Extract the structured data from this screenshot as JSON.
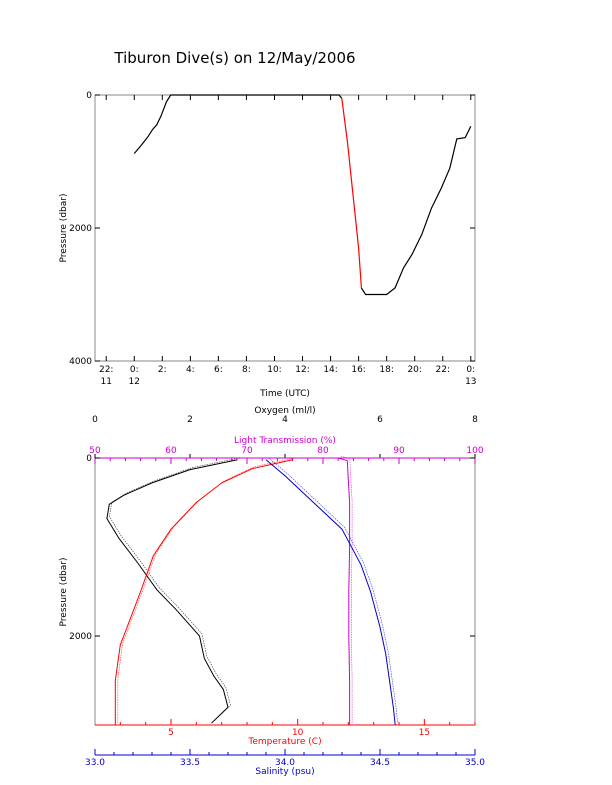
{
  "title": "Tiburon Dive(s) on 12/May/2006",
  "chart_data": [
    {
      "type": "line",
      "xlabel": "Time (UTC)",
      "ylabel": "Pressure (dbar)",
      "y_inverted": true,
      "ylim": [
        4000,
        0
      ],
      "xlim": [
        -0.8,
        26.3
      ],
      "x_ticks": [
        {
          "x": 0,
          "l1": "22:",
          "l2": "11"
        },
        {
          "x": 2,
          "l1": "0:",
          "l2": "12"
        },
        {
          "x": 4,
          "l1": "2:",
          "l2": ""
        },
        {
          "x": 6,
          "l1": "4:",
          "l2": ""
        },
        {
          "x": 8,
          "l1": "6:",
          "l2": ""
        },
        {
          "x": 10,
          "l1": "8:",
          "l2": ""
        },
        {
          "x": 12,
          "l1": "10:",
          "l2": ""
        },
        {
          "x": 14,
          "l1": "12:",
          "l2": ""
        },
        {
          "x": 16,
          "l1": "14:",
          "l2": ""
        },
        {
          "x": 18,
          "l1": "16:",
          "l2": ""
        },
        {
          "x": 20,
          "l1": "18:",
          "l2": ""
        },
        {
          "x": 22,
          "l1": "20:",
          "l2": ""
        },
        {
          "x": 24,
          "l1": "22:",
          "l2": ""
        },
        {
          "x": 26,
          "l1": "0:",
          "l2": "13"
        }
      ],
      "y_ticks": [
        0,
        2000,
        4000
      ],
      "series": [
        {
          "color": "#000000",
          "points": [
            [
              2.0,
              880
            ],
            [
              2.4,
              780
            ],
            [
              2.7,
              700
            ],
            [
              3.0,
              620
            ],
            [
              3.3,
              520
            ],
            [
              3.6,
              450
            ],
            [
              3.9,
              320
            ],
            [
              4.3,
              100
            ],
            [
              4.6,
              0
            ],
            [
              7,
              0
            ],
            [
              10,
              0
            ],
            [
              13,
              0
            ],
            [
              16,
              0
            ],
            [
              16.6,
              0
            ],
            [
              16.8,
              50
            ]
          ]
        },
        {
          "color": "#ff0000",
          "points": [
            [
              16.8,
              50
            ],
            [
              17.2,
              700
            ],
            [
              17.6,
              1500
            ],
            [
              18.0,
              2300
            ],
            [
              18.2,
              2900
            ]
          ]
        },
        {
          "color": "#000000",
          "points": [
            [
              18.2,
              2900
            ],
            [
              18.5,
              3000
            ],
            [
              19.4,
              3000
            ],
            [
              20.0,
              3000
            ],
            [
              20.6,
              2900
            ],
            [
              21.2,
              2600
            ],
            [
              21.8,
              2400
            ],
            [
              22.5,
              2100
            ],
            [
              23.2,
              1700
            ],
            [
              23.9,
              1400
            ],
            [
              24.5,
              1100
            ],
            [
              25.0,
              660
            ],
            [
              25.6,
              640
            ],
            [
              26.0,
              470
            ]
          ]
        }
      ]
    },
    {
      "type": "line",
      "ylabel": "Pressure (dbar)",
      "y_inverted": true,
      "ylim": [
        3000,
        0
      ],
      "y_ticks": [
        0,
        2000
      ],
      "axes": {
        "oxygen": {
          "label": "Oxygen (ml/l)",
          "range": [
            0,
            8
          ],
          "ticks": [
            0,
            2,
            4,
            6,
            8
          ],
          "color": "#000000"
        },
        "light_transmission": {
          "label": "Light Transmission (%)",
          "range": [
            50,
            100
          ],
          "ticks": [
            50,
            60,
            70,
            80,
            90,
            100
          ],
          "color": "#cc00cc"
        },
        "temperature": {
          "label": "Temperature (C)",
          "range": [
            2,
            17
          ],
          "ticks": [
            5,
            10,
            15
          ],
          "color": "#ff0000"
        },
        "salinity": {
          "label": "Salinity (psu)",
          "range": [
            33.0,
            35.0
          ],
          "ticks": [
            "33.0",
            "33.5",
            "34.0",
            "34.5",
            "35.0"
          ],
          "color": "#0000cc"
        }
      },
      "series": [
        {
          "name": "Oxygen",
          "axis": "oxygen",
          "color": "#000000",
          "points": [
            [
              3.0,
              20
            ],
            [
              2.0,
              130
            ],
            [
              1.2,
              280
            ],
            [
              0.6,
              420
            ],
            [
              0.3,
              520
            ],
            [
              0.25,
              680
            ],
            [
              0.5,
              900
            ],
            [
              0.9,
              1180
            ],
            [
              1.3,
              1480
            ],
            [
              1.7,
              1700
            ],
            [
              1.95,
              1850
            ],
            [
              2.2,
              2000
            ],
            [
              2.3,
              2250
            ],
            [
              2.5,
              2450
            ],
            [
              2.7,
              2600
            ],
            [
              2.8,
              2800
            ],
            [
              2.45,
              2980
            ]
          ]
        },
        {
          "name": "Light Transmission",
          "axis": "light_transmission",
          "color": "#cc00cc",
          "points": [
            [
              82,
              0
            ],
            [
              83.2,
              30
            ],
            [
              83.3,
              200
            ],
            [
              83.5,
              500
            ],
            [
              83.5,
              1000
            ],
            [
              83.4,
              1500
            ],
            [
              83.4,
              2000
            ],
            [
              83.5,
              2500
            ],
            [
              83.5,
              3000
            ]
          ]
        },
        {
          "name": "Temperature",
          "axis": "temperature",
          "color": "#ff0000",
          "points": [
            [
              9.8,
              20
            ],
            [
              8.2,
              120
            ],
            [
              7.0,
              280
            ],
            [
              6.0,
              500
            ],
            [
              5.0,
              800
            ],
            [
              4.3,
              1100
            ],
            [
              3.8,
              1500
            ],
            [
              3.4,
              1800
            ],
            [
              3.0,
              2100
            ],
            [
              2.8,
              2500
            ],
            [
              2.8,
              3000
            ]
          ]
        },
        {
          "name": "Salinity",
          "axis": "salinity",
          "color": "#0000cc",
          "points": [
            [
              33.9,
              20
            ],
            [
              34.0,
              200
            ],
            [
              34.1,
              400
            ],
            [
              34.2,
              600
            ],
            [
              34.3,
              800
            ],
            [
              34.4,
              1200
            ],
            [
              34.45,
              1500
            ],
            [
              34.5,
              1900
            ],
            [
              34.53,
              2200
            ],
            [
              34.55,
              2500
            ],
            [
              34.57,
              2800
            ],
            [
              34.58,
              3000
            ]
          ]
        }
      ]
    }
  ]
}
